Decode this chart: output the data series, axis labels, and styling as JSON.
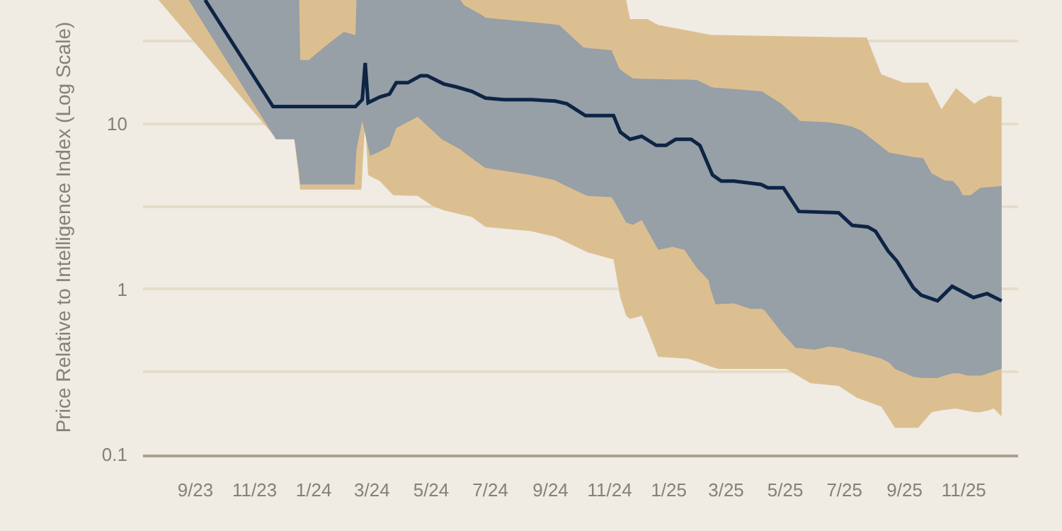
{
  "chart_data": {
    "type": "line",
    "ylabel": "Price Relative to Intelligence Index (Log Scale)",
    "log": "y",
    "grid": "y",
    "marker": "none",
    "line_style": "solid",
    "xlim": [
      "2023-07-09",
      "2025-12-27"
    ],
    "xticks": [
      {
        "value": "2023-09-01",
        "label": "9/23"
      },
      {
        "value": "2023-11-01",
        "label": "11/23"
      },
      {
        "value": "2024-01-01",
        "label": "1/24"
      },
      {
        "value": "2024-03-01",
        "label": "3/24"
      },
      {
        "value": "2024-05-01",
        "label": "5/24"
      },
      {
        "value": "2024-07-01",
        "label": "7/24"
      },
      {
        "value": "2024-09-01",
        "label": "9/24"
      },
      {
        "value": "2024-11-01",
        "label": "11/24"
      },
      {
        "value": "2025-01-01",
        "label": "1/25"
      },
      {
        "value": "2025-03-01",
        "label": "3/25"
      },
      {
        "value": "2025-05-01",
        "label": "5/25"
      },
      {
        "value": "2025-07-01",
        "label": "7/25"
      },
      {
        "value": "2025-09-01",
        "label": "9/25"
      },
      {
        "value": "2025-11-01",
        "label": "11/25"
      }
    ],
    "ylim": [
      0.1,
      56
    ],
    "yticks": [
      0.1,
      {
        "value": 0.3162,
        "label": null
      },
      1,
      {
        "value": 3.162,
        "label": null
      },
      10,
      {
        "value": 31.62,
        "label": null
      }
    ],
    "series": [
      {
        "type": "area",
        "color": "#dcbf90",
        "x": [
          "2023-07-25",
          "2023-11-23",
          "2023-12-12",
          "2023-12-18",
          "2024-02-19",
          "2024-02-23",
          "2024-02-26",
          "2024-03-09",
          "2024-03-23",
          "2024-04-17",
          "2024-05-02",
          "2024-05-14",
          "2024-06-12",
          "2024-06-26",
          "2024-08-12",
          "2024-09-06",
          "2024-10-09",
          "2024-11-05",
          "2024-11-12",
          "2024-11-18",
          "2024-11-22",
          "2024-12-04",
          "2024-12-10",
          "2024-12-21",
          "2025-01-20",
          "2025-01-27",
          "2025-02-13",
          "2025-02-21",
          "2025-05-02",
          "2025-05-27",
          "2025-06-25",
          "2025-07-14",
          "2025-07-24",
          "2025-08-08",
          "2025-08-22",
          "2025-08-31",
          "2025-09-15",
          "2025-09-25",
          "2025-09-29",
          "2025-10-09",
          "2025-10-24",
          "2025-11-12",
          "2025-11-18",
          "2025-11-27",
          "2025-12-02",
          "2025-12-10"
        ],
        "upper": [
          56,
          56,
          56,
          56,
          56,
          56,
          56,
          56,
          56,
          56,
          56,
          56,
          56,
          56,
          56,
          56,
          56,
          56,
          56,
          56,
          42.9,
          42.9,
          42.9,
          39.6,
          36.7,
          36,
          34.5,
          34.4,
          33.8,
          33.6,
          33.4,
          33.3,
          33.2,
          19.9,
          18.5,
          17.7,
          17.7,
          17.7,
          16,
          12.2,
          16.4,
          13.2,
          14,
          14.8,
          14.6,
          14.5
        ],
        "lower": [
          56,
          8.2,
          8.2,
          4,
          4,
          10.4,
          4.9,
          4.5,
          3.7,
          3.66,
          3.2,
          3,
          2.73,
          2.38,
          2.24,
          2.07,
          1.67,
          1.51,
          0.89,
          0.69,
          0.66,
          0.69,
          0.57,
          0.39,
          0.38,
          0.37,
          0.34,
          0.33,
          0.33,
          0.27,
          0.26,
          0.22,
          0.21,
          0.195,
          0.145,
          0.145,
          0.145,
          0.17,
          0.18,
          0.185,
          0.19,
          0.18,
          0.18,
          0.185,
          0.19,
          0.17
        ],
        "values": [
          null,
          null,
          null,
          null,
          null,
          null,
          null,
          null,
          null,
          null,
          null,
          null,
          null,
          null,
          null,
          null,
          null,
          null,
          null,
          null,
          null,
          null,
          null,
          null,
          null,
          null,
          null,
          null,
          null,
          null,
          null,
          null,
          null,
          null,
          null,
          null,
          null,
          null,
          null,
          null,
          null,
          null,
          null,
          null,
          null,
          null
        ]
      },
      {
        "type": "area",
        "color": "#979fa7",
        "x": [
          "2023-08-25",
          "2023-11-23",
          "2023-12-12",
          "2023-12-17",
          "2023-12-18",
          "2023-12-27",
          "2024-01-13",
          "2024-02-01",
          "2024-02-12",
          "2024-02-13",
          "2024-02-14",
          "2024-02-20",
          "2024-02-28",
          "2024-03-07",
          "2024-03-19",
          "2024-03-26",
          "2024-04-17",
          "2024-05-12",
          "2024-05-31",
          "2024-06-04",
          "2024-06-22",
          "2024-06-26",
          "2024-08-12",
          "2024-09-06",
          "2024-09-10",
          "2024-10-05",
          "2024-10-09",
          "2024-11-03",
          "2024-11-11",
          "2024-11-18",
          "2024-11-25",
          "2024-12-04",
          "2024-12-21",
          "2025-01-05",
          "2025-01-17",
          "2025-01-30",
          "2025-02-11",
          "2025-02-13",
          "2025-02-18",
          "2025-03-09",
          "2025-03-26",
          "2025-04-07",
          "2025-04-10",
          "2025-04-27",
          "2025-05-12",
          "2025-05-16",
          "2025-05-31",
          "2025-06-15",
          "2025-06-29",
          "2025-07-09",
          "2025-07-18",
          "2025-08-08",
          "2025-08-16",
          "2025-08-22",
          "2025-09-10",
          "2025-09-20",
          "2025-09-29",
          "2025-10-05",
          "2025-10-12",
          "2025-10-21",
          "2025-10-27",
          "2025-10-31",
          "2025-11-05",
          "2025-11-08",
          "2025-11-18",
          "2025-11-19",
          "2025-12-10"
        ],
        "upper": [
          56,
          56,
          56,
          56,
          24.3,
          24.3,
          29.5,
          35.9,
          34.5,
          34.5,
          56,
          56,
          56,
          56,
          56,
          56,
          56,
          56,
          56,
          52,
          45.5,
          43.8,
          41.2,
          39.8,
          39.6,
          28.9,
          28.7,
          27.8,
          21.5,
          20,
          18.8,
          18.7,
          18.6,
          18.5,
          18.5,
          18.4,
          17,
          16.7,
          16.5,
          16.2,
          15.9,
          15.7,
          15.3,
          13.2,
          11,
          10.4,
          10.3,
          10.2,
          9.9,
          9.6,
          9.1,
          7.3,
          6.7,
          6.6,
          6.3,
          6.2,
          5,
          4.8,
          4.55,
          4.5,
          4.1,
          3.7,
          3.7,
          3.7,
          4.1,
          4.1,
          4.2
        ],
        "lower": [
          56,
          8.05,
          8.05,
          5,
          4.3,
          4.3,
          4.3,
          4.3,
          4.3,
          5.5,
          7,
          10.4,
          6.4,
          6.7,
          7.3,
          9.4,
          11,
          8.05,
          7,
          6.7,
          5.6,
          5.4,
          4.9,
          4.55,
          4.4,
          3.75,
          3.66,
          3.6,
          3,
          2.52,
          2.45,
          2.62,
          1.73,
          1.8,
          1.73,
          1.34,
          1.13,
          1,
          0.81,
          0.82,
          0.76,
          0.76,
          0.74,
          0.55,
          0.44,
          0.44,
          0.43,
          0.45,
          0.44,
          0.42,
          0.41,
          0.38,
          0.36,
          0.33,
          0.295,
          0.29,
          0.29,
          0.29,
          0.3,
          0.31,
          0.31,
          0.305,
          0.3,
          0.3,
          0.3,
          0.3,
          0.33
        ],
        "values": [
          null,
          null,
          null,
          null,
          null,
          null,
          null,
          null,
          null,
          null,
          null,
          null,
          null,
          null,
          null,
          null,
          null,
          null,
          null,
          null,
          null,
          null,
          null,
          null,
          null,
          null,
          null,
          null,
          null,
          null,
          null,
          null,
          null,
          null,
          null,
          null,
          null,
          null,
          null,
          null,
          null,
          null,
          null,
          null,
          null,
          null,
          null,
          null,
          null,
          null,
          null,
          null,
          null,
          null,
          null,
          null,
          null,
          null,
          null,
          null,
          null,
          null,
          null,
          null,
          null,
          null,
          null
        ]
      },
      {
        "color": "#0e2444",
        "x": [
          "2023-09-11",
          "2023-11-20",
          "2024-02-13",
          "2024-02-20",
          "2024-02-23",
          "2024-02-26",
          "2024-03-09",
          "2024-03-19",
          "2024-03-26",
          "2024-04-07",
          "2024-04-20",
          "2024-04-27",
          "2024-05-14",
          "2024-05-27",
          "2024-06-12",
          "2024-06-26",
          "2024-07-15",
          "2024-08-12",
          "2024-09-06",
          "2024-09-18",
          "2024-10-07",
          "2024-11-05",
          "2024-11-12",
          "2024-11-22",
          "2024-12-04",
          "2024-12-19",
          "2024-12-29",
          "2025-01-08",
          "2025-01-24",
          "2025-02-02",
          "2025-02-15",
          "2025-02-24",
          "2025-03-09",
          "2025-04-06",
          "2025-04-13",
          "2025-04-29",
          "2025-05-15",
          "2025-06-25",
          "2025-07-09",
          "2025-07-25",
          "2025-08-02",
          "2025-08-15",
          "2025-08-24",
          "2025-09-10",
          "2025-09-18",
          "2025-10-05",
          "2025-10-20",
          "2025-11-11",
          "2025-11-25",
          "2025-12-10"
        ],
        "values": [
          56,
          12.7,
          12.7,
          14,
          23.3,
          13.4,
          14.5,
          15.1,
          17.7,
          17.7,
          19.5,
          19.5,
          17.4,
          16.7,
          15.7,
          14.3,
          14,
          14,
          13.7,
          13.2,
          11.2,
          11.2,
          8.9,
          8.05,
          8.4,
          7.4,
          7.4,
          8.05,
          8.05,
          7.4,
          4.9,
          4.5,
          4.5,
          4.3,
          4.1,
          4.1,
          2.95,
          2.9,
          2.43,
          2.38,
          2.24,
          1.7,
          1.48,
          1.02,
          0.92,
          0.85,
          1.04,
          0.89,
          0.94,
          0.85
        ]
      }
    ]
  }
}
